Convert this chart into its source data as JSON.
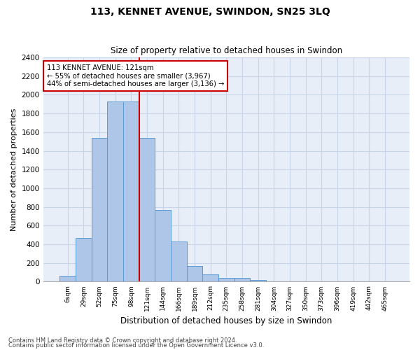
{
  "title": "113, KENNET AVENUE, SWINDON, SN25 3LQ",
  "subtitle": "Size of property relative to detached houses in Swindon",
  "xlabel": "Distribution of detached houses by size in Swindon",
  "ylabel": "Number of detached properties",
  "categories": [
    "6sqm",
    "29sqm",
    "52sqm",
    "75sqm",
    "98sqm",
    "121sqm",
    "144sqm",
    "166sqm",
    "189sqm",
    "212sqm",
    "235sqm",
    "258sqm",
    "281sqm",
    "304sqm",
    "327sqm",
    "350sqm",
    "373sqm",
    "396sqm",
    "419sqm",
    "442sqm",
    "465sqm"
  ],
  "values": [
    60,
    470,
    1540,
    1930,
    1930,
    1540,
    770,
    430,
    170,
    80,
    40,
    40,
    20,
    0,
    0,
    0,
    0,
    0,
    0,
    0,
    0
  ],
  "bar_color": "#aec6e8",
  "bar_edge_color": "#5b9bd5",
  "vline_color": "#cc0000",
  "vline_x": 4.5,
  "annotation_text": "113 KENNET AVENUE: 121sqm\n← 55% of detached houses are smaller (3,967)\n44% of semi-detached houses are larger (3,136) →",
  "annotation_box_color": "#ffffff",
  "annotation_box_edge_color": "#cc0000",
  "ylim": [
    0,
    2400
  ],
  "yticks": [
    0,
    200,
    400,
    600,
    800,
    1000,
    1200,
    1400,
    1600,
    1800,
    2000,
    2200,
    2400
  ],
  "grid_color": "#c8d4e8",
  "bg_color": "#e8eef8",
  "footer_line1": "Contains HM Land Registry data © Crown copyright and database right 2024.",
  "footer_line2": "Contains public sector information licensed under the Open Government Licence v3.0."
}
